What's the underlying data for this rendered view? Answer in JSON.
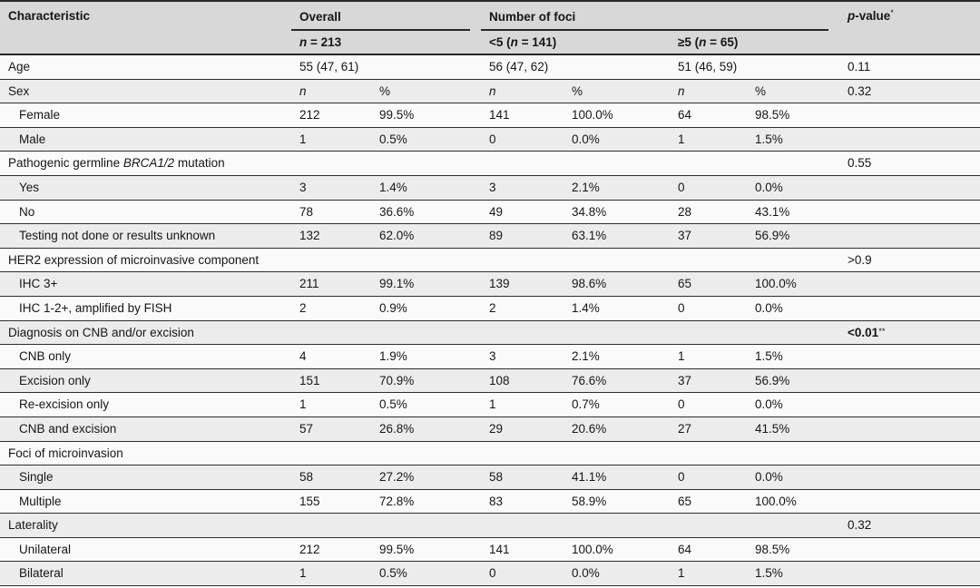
{
  "table": {
    "header": {
      "characteristic": "Characteristic",
      "overall_label": "Overall",
      "overall_sub": [
        {
          "t": "n",
          "i": true
        },
        {
          "t": " = "
        },
        {
          "t": "213"
        }
      ],
      "foci_label": "Number of foci",
      "foci_sub_lt5": [
        {
          "t": "<5 ("
        },
        {
          "t": "n",
          "i": true
        },
        {
          "t": " = "
        },
        {
          "t": "141)"
        }
      ],
      "foci_sub_ge5": [
        {
          "t": "≥5 ("
        },
        {
          "t": "n",
          "i": true
        },
        {
          "t": " = "
        },
        {
          "t": "65)"
        }
      ],
      "pvalue": [
        {
          "t": "p",
          "i": true
        },
        {
          "t": "-value"
        },
        {
          "t": "*",
          "s": true
        }
      ],
      "subcolumn_n": "n",
      "subcolumn_pct": "%"
    },
    "rows": [
      {
        "label": [
          {
            "t": "Age"
          }
        ],
        "indent": false,
        "wide": [
          "55 (47, 61)",
          "56 (47, 62)",
          "51 (46, 59)"
        ],
        "p": [
          {
            "t": "0.11"
          }
        ]
      },
      {
        "label": [
          {
            "t": "Sex"
          }
        ],
        "indent": false,
        "cells": [
          "n",
          "%",
          "n",
          "%",
          "n",
          "%"
        ],
        "italic_cells": [
          0,
          2,
          4
        ],
        "p": [
          {
            "t": "0.32"
          }
        ]
      },
      {
        "label": [
          {
            "t": "Female"
          }
        ],
        "indent": true,
        "cells": [
          "212",
          "99.5%",
          "141",
          "100.0%",
          "64",
          "98.5%"
        ]
      },
      {
        "label": [
          {
            "t": "Male"
          }
        ],
        "indent": true,
        "cells": [
          "1",
          "0.5%",
          "0",
          "0.0%",
          "1",
          "1.5%"
        ]
      },
      {
        "label": [
          {
            "t": "Pathogenic germline "
          },
          {
            "t": "BRCA1/2",
            "i": true
          },
          {
            "t": " mutation"
          }
        ],
        "indent": false,
        "cells": [
          "",
          "",
          "",
          "",
          "",
          ""
        ],
        "p": [
          {
            "t": "0.55"
          }
        ]
      },
      {
        "label": [
          {
            "t": "Yes"
          }
        ],
        "indent": true,
        "cells": [
          "3",
          "1.4%",
          "3",
          "2.1%",
          "0",
          "0.0%"
        ]
      },
      {
        "label": [
          {
            "t": "No"
          }
        ],
        "indent": true,
        "cells": [
          "78",
          "36.6%",
          "49",
          "34.8%",
          "28",
          "43.1%"
        ]
      },
      {
        "label": [
          {
            "t": "Testing not done or results unknown"
          }
        ],
        "indent": true,
        "cells": [
          "132",
          "62.0%",
          "89",
          "63.1%",
          "37",
          "56.9%"
        ]
      },
      {
        "label": [
          {
            "t": "HER2 expression of microinvasive component"
          }
        ],
        "indent": false,
        "cells": [
          "",
          "",
          "",
          "",
          "",
          ""
        ],
        "p": [
          {
            "t": ">0.9"
          }
        ]
      },
      {
        "label": [
          {
            "t": "IHC 3+"
          }
        ],
        "indent": true,
        "cells": [
          "211",
          "99.1%",
          "139",
          "98.6%",
          "65",
          "100.0%"
        ]
      },
      {
        "label": [
          {
            "t": "IHC 1-2+, amplified by FISH"
          }
        ],
        "indent": true,
        "cells": [
          "2",
          "0.9%",
          "2",
          "1.4%",
          "0",
          "0.0%"
        ]
      },
      {
        "label": [
          {
            "t": "Diagnosis on CNB and/or excision"
          }
        ],
        "indent": false,
        "cells": [
          "",
          "",
          "",
          "",
          "",
          ""
        ],
        "p": [
          {
            "t": "<0.01",
            "b": true
          },
          {
            "t": "**",
            "s": true
          }
        ]
      },
      {
        "label": [
          {
            "t": "CNB only"
          }
        ],
        "indent": true,
        "cells": [
          "4",
          "1.9%",
          "3",
          "2.1%",
          "1",
          "1.5%"
        ]
      },
      {
        "label": [
          {
            "t": "Excision only"
          }
        ],
        "indent": true,
        "cells": [
          "151",
          "70.9%",
          "108",
          "76.6%",
          "37",
          "56.9%"
        ]
      },
      {
        "label": [
          {
            "t": "Re-excision only"
          }
        ],
        "indent": true,
        "cells": [
          "1",
          "0.5%",
          "1",
          "0.7%",
          "0",
          "0.0%"
        ]
      },
      {
        "label": [
          {
            "t": "CNB and excision"
          }
        ],
        "indent": true,
        "cells": [
          "57",
          "26.8%",
          "29",
          "20.6%",
          "27",
          "41.5%"
        ]
      },
      {
        "label": [
          {
            "t": "Foci of microinvasion"
          }
        ],
        "indent": false,
        "cells": [
          "",
          "",
          "",
          "",
          "",
          ""
        ]
      },
      {
        "label": [
          {
            "t": "Single"
          }
        ],
        "indent": true,
        "cells": [
          "58",
          "27.2%",
          "58",
          "41.1%",
          "0",
          "0.0%"
        ]
      },
      {
        "label": [
          {
            "t": "Multiple"
          }
        ],
        "indent": true,
        "cells": [
          "155",
          "72.8%",
          "83",
          "58.9%",
          "65",
          "100.0%"
        ]
      },
      {
        "label": [
          {
            "t": "Laterality"
          }
        ],
        "indent": false,
        "cells": [
          "",
          "",
          "",
          "",
          "",
          ""
        ],
        "p": [
          {
            "t": "0.32"
          }
        ]
      },
      {
        "label": [
          {
            "t": "Unilateral"
          }
        ],
        "indent": true,
        "cells": [
          "212",
          "99.5%",
          "141",
          "100.0%",
          "64",
          "98.5%"
        ]
      },
      {
        "label": [
          {
            "t": "Bilateral"
          }
        ],
        "indent": true,
        "cells": [
          "1",
          "0.5%",
          "0",
          "0.0%",
          "1",
          "1.5%"
        ]
      }
    ],
    "colors": {
      "header_bg": "#d8d8d8",
      "row_shade_bg": "#ececec",
      "row_plain_bg": "#fafafa",
      "rule": "#2e2e2e"
    }
  }
}
